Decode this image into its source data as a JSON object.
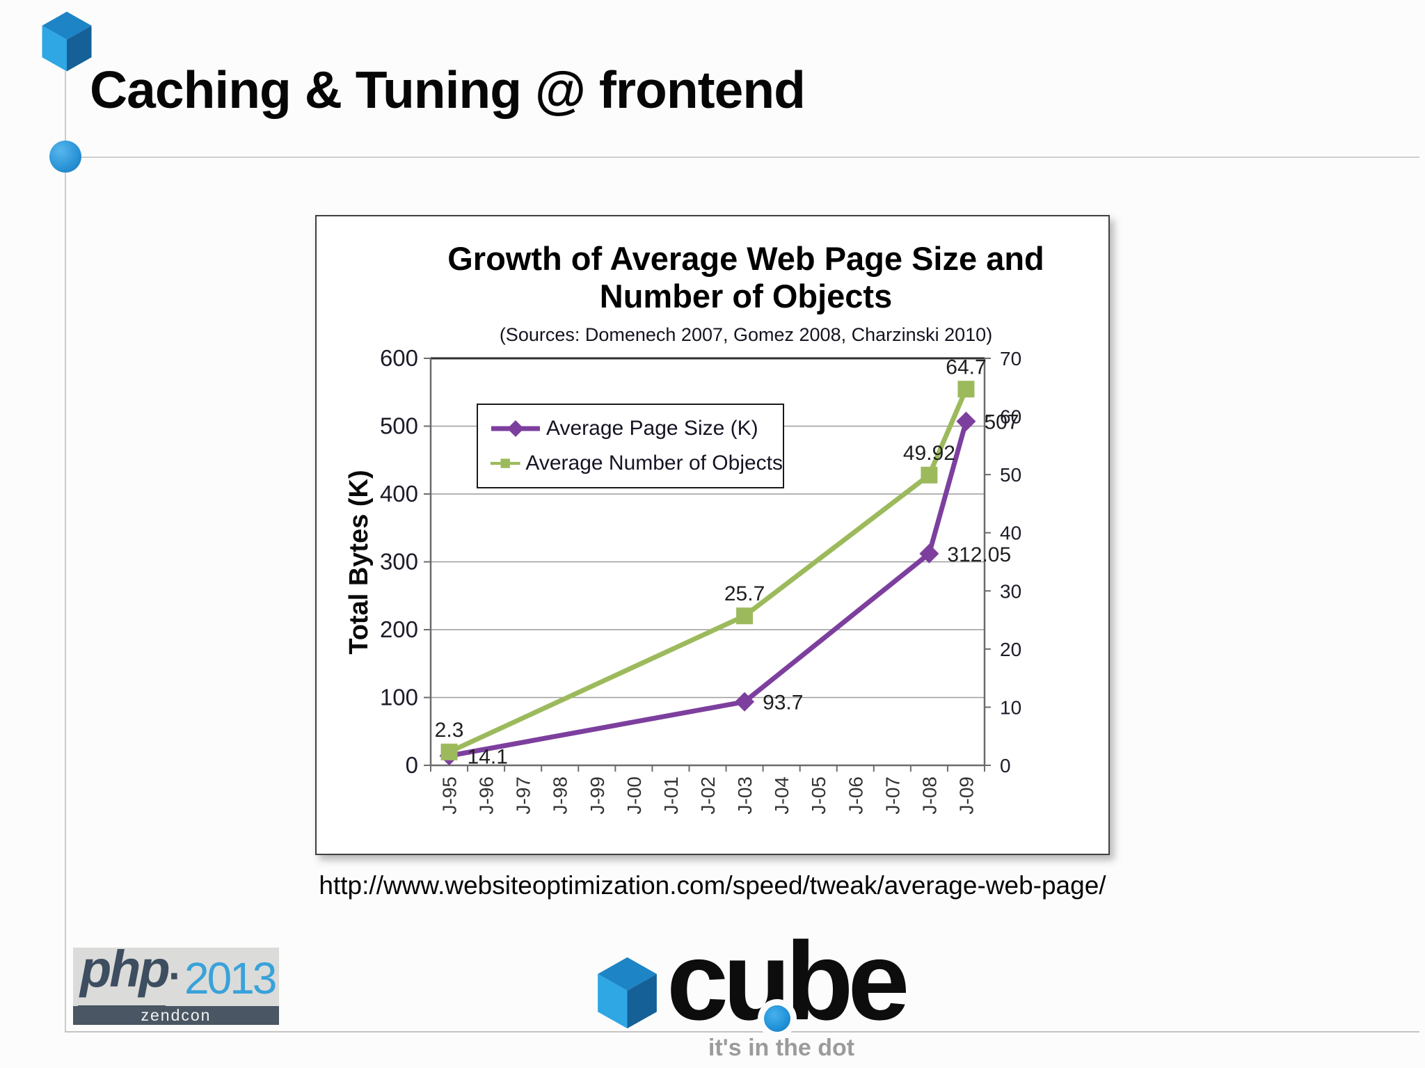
{
  "slide": {
    "title": "Caching & Tuning @ frontend",
    "url_caption": "http://www.websiteoptimization.com/speed/tweak/average-web-page/"
  },
  "icons": {
    "slide_bullet": "blue-3d-cube",
    "section_bullet": "blue-circle",
    "cube_logo_mark": "blue-3d-cube"
  },
  "logos": {
    "php2013": {
      "php": "php",
      "dot": "·",
      "year": "2013",
      "banner": "zendcon"
    },
    "cube": {
      "word": "cube",
      "tagline": "it's in the dot"
    }
  },
  "chart_data": {
    "type": "line",
    "title_lines": [
      "Growth of Average Web Page Size and",
      "Number of Objects"
    ],
    "title": "Growth of Average Web Page Size and Number of Objects",
    "subtitle": "(Sources: Domenech 2007,  Gomez 2008,  Charzinski  2010)",
    "categories": [
      "J-95",
      "J-96",
      "J-97",
      "J-98",
      "J-99",
      "J-00",
      "J-01",
      "J-02",
      "J-03",
      "J-04",
      "J-05",
      "J-06",
      "J-07",
      "J-08",
      "J-09"
    ],
    "left_axis": {
      "title": "Total Bytes (K)",
      "min": 0,
      "max": 600,
      "step": 100
    },
    "right_axis": {
      "min": 0,
      "max": 70,
      "step": 10
    },
    "grid": true,
    "legend_position": "inside-top-left",
    "series": [
      {
        "name": "Average Page Size (K)",
        "axis": "left",
        "color": "#7d3f9e",
        "marker": "diamond",
        "points": [
          {
            "category": "J-95",
            "value": 14.1,
            "label": "14.1"
          },
          {
            "category": "J-03",
            "value": 93.7,
            "label": "93.7"
          },
          {
            "category": "J-08",
            "value": 312.05,
            "label": "312.05"
          },
          {
            "category": "J-09",
            "value": 507,
            "label": "507"
          }
        ]
      },
      {
        "name": "Average Number of Objects",
        "axis": "right",
        "color": "#9cba5c",
        "marker": "square",
        "points": [
          {
            "category": "J-95",
            "value": 2.3,
            "label": "2.3"
          },
          {
            "category": "J-03",
            "value": 25.7,
            "label": "25.7"
          },
          {
            "category": "J-08",
            "value": 49.92,
            "label": "49.92"
          },
          {
            "category": "J-09",
            "value": 64.7,
            "label": "64.7"
          }
        ]
      }
    ]
  }
}
